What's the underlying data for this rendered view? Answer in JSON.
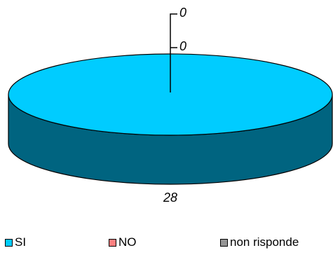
{
  "chart_data": {
    "type": "pie",
    "title": "",
    "style": "3d",
    "categories": [
      "SI",
      "NO",
      "non risponde"
    ],
    "values": [
      28,
      0,
      0
    ],
    "data_labels": [
      "28",
      "0",
      "0"
    ],
    "colors": {
      "SI": "#00ccff",
      "SI_side": "#006480",
      "NO": "#ff8080",
      "non risponde": "#969696"
    },
    "legend": {
      "position": "bottom",
      "items": [
        {
          "label": "SI",
          "color": "#00ccff"
        },
        {
          "label": "NO",
          "color": "#ff8080"
        },
        {
          "label": "non risponde",
          "color": "#969696"
        }
      ]
    }
  }
}
